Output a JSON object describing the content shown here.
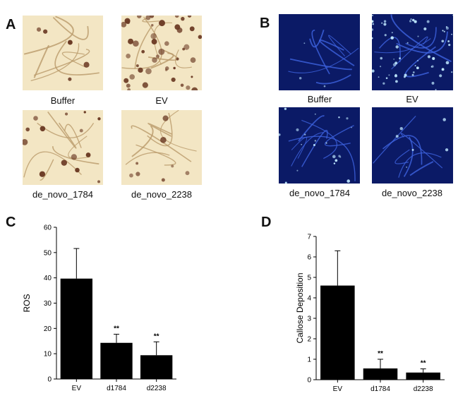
{
  "panels": {
    "A": {
      "letter": "A",
      "images": [
        {
          "caption": "Buffer",
          "stain": "dab",
          "intensity": "low"
        },
        {
          "caption": "EV",
          "stain": "dab",
          "intensity": "high"
        },
        {
          "caption": "de_novo_1784",
          "stain": "dab",
          "intensity": "medium"
        },
        {
          "caption": "de_novo_2238",
          "stain": "dab",
          "intensity": "low"
        }
      ]
    },
    "B": {
      "letter": "B",
      "images": [
        {
          "caption": "Buffer",
          "stain": "aniline-blue",
          "intensity": "low"
        },
        {
          "caption": "EV",
          "stain": "aniline-blue",
          "intensity": "high"
        },
        {
          "caption": "de_novo_1784",
          "stain": "aniline-blue",
          "intensity": "medium"
        },
        {
          "caption": "de_novo_2238",
          "stain": "aniline-blue",
          "intensity": "low"
        }
      ]
    },
    "C": {
      "letter": "C"
    },
    "D": {
      "letter": "D"
    }
  },
  "colors": {
    "bar": "#000000",
    "dab_bg": "#f3e6c4",
    "dab_vein": "#b99a6a",
    "dab_spot": "#6b3a24",
    "blue_bg": "#0b1a66",
    "blue_vein": "#3d63e0",
    "blue_spot": "#bfe8ff"
  },
  "chart_data": [
    {
      "type": "bar",
      "categories": [
        "EV",
        "d1784",
        "d2238"
      ],
      "values": [
        39.7,
        14.3,
        9.4
      ],
      "errors": [
        11.9,
        3.4,
        5.3
      ],
      "annotations": [
        "",
        "**",
        "**"
      ],
      "ylabel": "ROS",
      "xlabel": "",
      "ylim": [
        0,
        60
      ],
      "yticks": [
        "0",
        "10",
        "20",
        "30",
        "40",
        "50",
        "60"
      ]
    },
    {
      "type": "bar",
      "categories": [
        "EV",
        "d1784",
        "d2238"
      ],
      "values": [
        4.6,
        0.55,
        0.35
      ],
      "errors": [
        1.7,
        0.45,
        0.18
      ],
      "annotations": [
        "",
        "**",
        "**"
      ],
      "ylabel": "Callose Deposition",
      "xlabel": "",
      "ylim": [
        0,
        7
      ],
      "yticks": [
        "0",
        "1",
        "2",
        "3",
        "4",
        "5",
        "6",
        "7"
      ]
    }
  ]
}
